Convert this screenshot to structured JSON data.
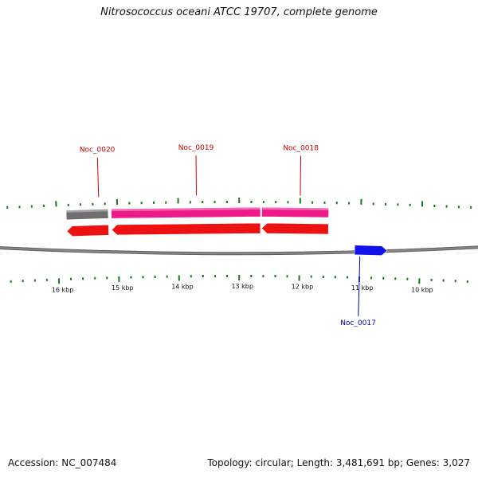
{
  "title": "Nitrosococcus oceani ATCC 19707, complete genome",
  "footer": {
    "accession": "Accession: NC_007484",
    "summary": "Topology: circular; Length: 3,481,691 bp; Genes: 3,027"
  },
  "map": {
    "start_kbp": 9.2,
    "end_kbp": 16.9,
    "tick_interval_kbp": 0.2,
    "major_tick_every": 5,
    "scale_labels": [
      {
        "kbp": 10,
        "text": "10 kbp"
      },
      {
        "kbp": 11,
        "text": "11 kbp"
      },
      {
        "kbp": 12,
        "text": "12 kbp"
      },
      {
        "kbp": 13,
        "text": "13 kbp"
      },
      {
        "kbp": 14,
        "text": "14 kbp"
      },
      {
        "kbp": 15,
        "text": "15 kbp"
      },
      {
        "kbp": 16,
        "text": "16 kbp"
      }
    ]
  },
  "colors": {
    "backbone": "#888888",
    "tick": "#1a7a1a",
    "cds_forward": "#ee1111",
    "cds_reverse": "#1111ee",
    "feature_pink": "#ee1a8a",
    "feature_gray": "#6f6f6f",
    "label_forward": "#cc0000",
    "label_reverse": "#0000bb"
  },
  "genes": [
    {
      "id": "Noc_0017",
      "label": "Noc_0017",
      "strand": "-",
      "start_kbp": 10.55,
      "end_kbp": 11.09,
      "label_kbp": 11.0
    },
    {
      "id": "Noc_0018",
      "label": "Noc_0018",
      "strand": "+",
      "start_kbp": 11.53,
      "end_kbp": 12.63,
      "label_kbp": 12.0
    },
    {
      "id": "Noc_0019",
      "label": "Noc_0019",
      "strand": "+",
      "start_kbp": 12.65,
      "end_kbp": 15.1,
      "label_kbp": 13.7
    },
    {
      "id": "Noc_0020",
      "label": "Noc_0020",
      "strand": "+",
      "start_kbp": 15.15,
      "end_kbp": 15.84,
      "label_kbp": 15.3
    }
  ],
  "features": [
    {
      "id": "feature-1",
      "color": "pink",
      "start_kbp": 11.53,
      "end_kbp": 12.63
    },
    {
      "id": "feature-2",
      "color": "pink",
      "start_kbp": 12.65,
      "end_kbp": 15.1
    },
    {
      "id": "feature-3",
      "color": "gray",
      "start_kbp": 15.15,
      "end_kbp": 15.84
    }
  ]
}
